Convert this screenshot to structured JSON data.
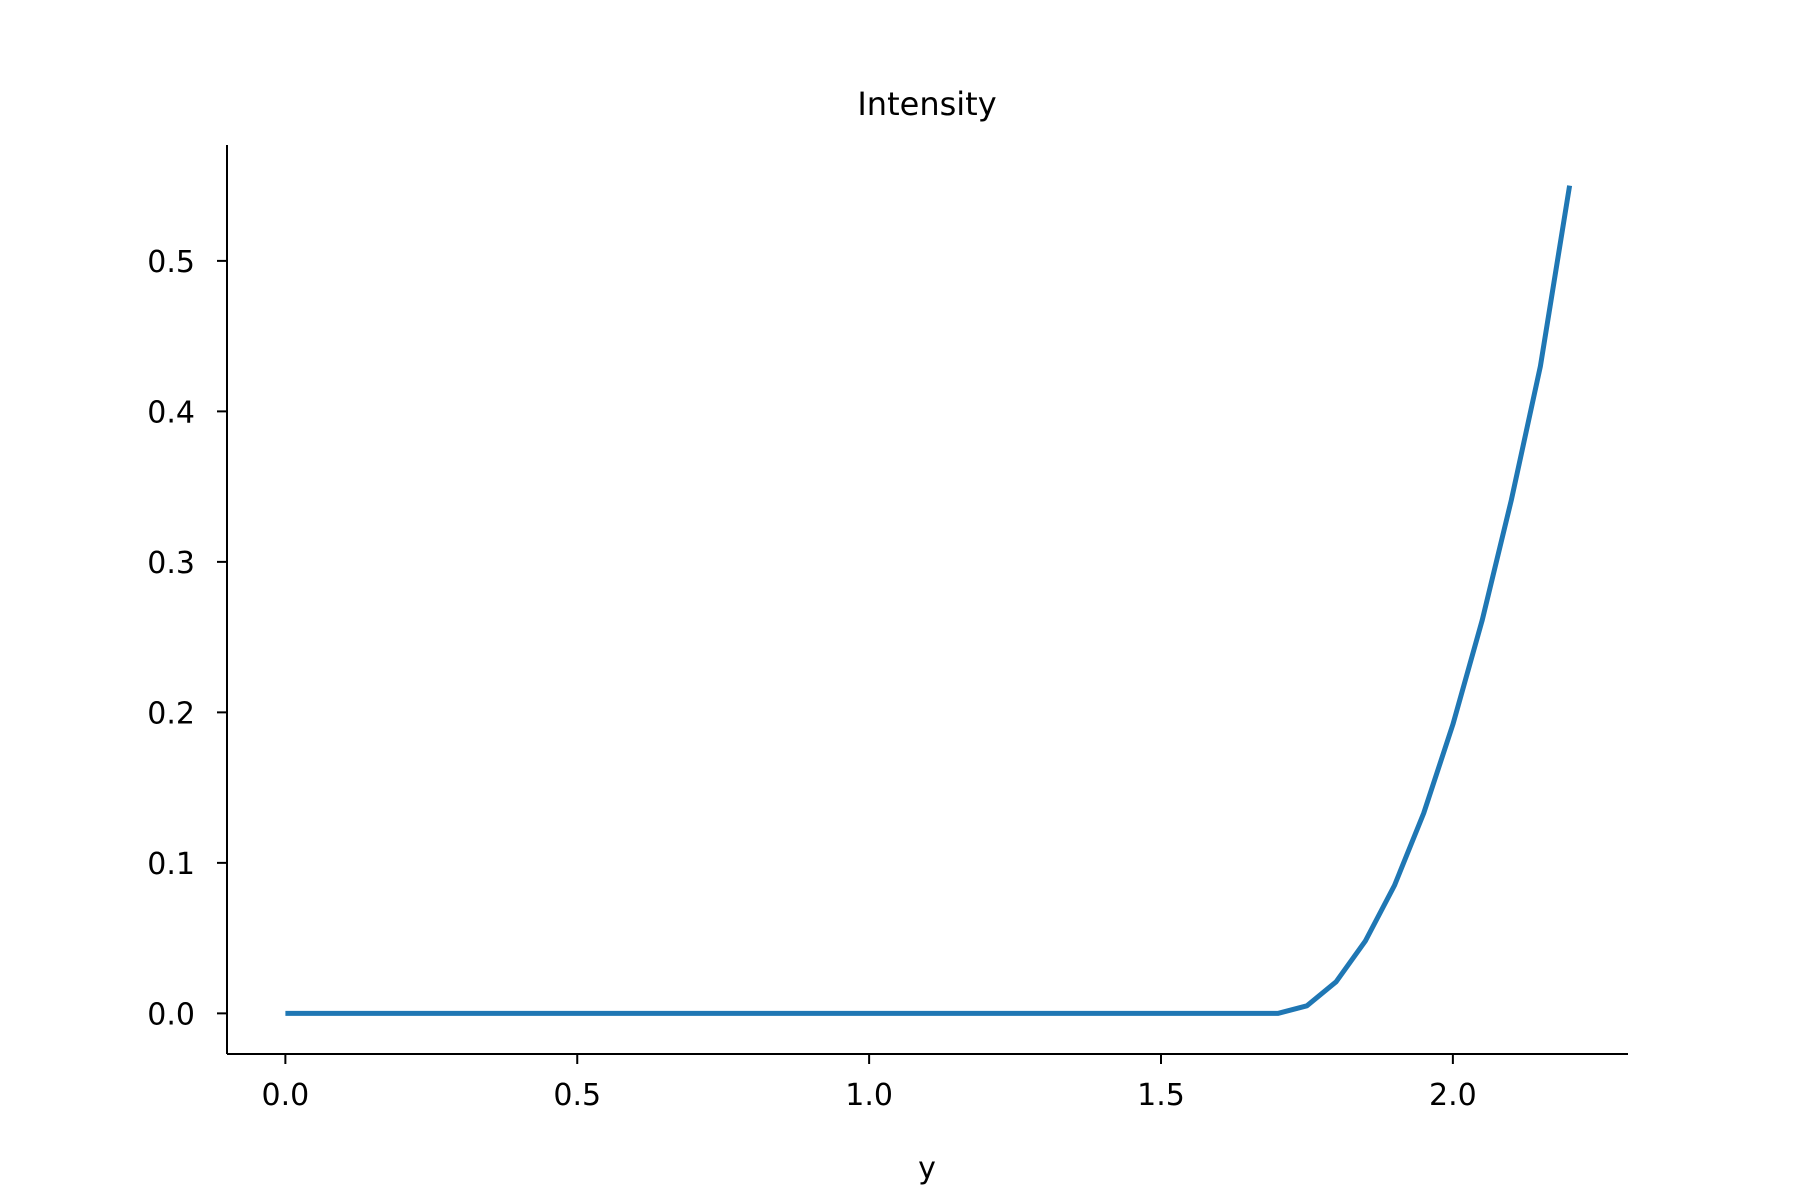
{
  "chart_data": {
    "type": "line",
    "title": "Intensity",
    "xlabel": "y",
    "ylabel": "",
    "xlim": [
      -0.1,
      2.3
    ],
    "ylim": [
      -0.027,
      0.577
    ],
    "xticks": [
      0.0,
      0.5,
      1.0,
      1.5,
      2.0
    ],
    "xtick_labels": [
      "0.0",
      "0.5",
      "1.0",
      "1.5",
      "2.0"
    ],
    "yticks": [
      0.0,
      0.1,
      0.2,
      0.3,
      0.4,
      0.5
    ],
    "ytick_labels": [
      "0.0",
      "0.1",
      "0.2",
      "0.3",
      "0.4",
      "0.5"
    ],
    "grid": false,
    "legend": "none",
    "colors": {
      "line": "#1f77b4",
      "axis": "#000000",
      "background": "#ffffff"
    },
    "series": [
      {
        "x": [
          0.0,
          0.25,
          0.5,
          0.75,
          1.0,
          1.25,
          1.5,
          1.7,
          1.75,
          1.8,
          1.85,
          1.9,
          1.95,
          2.0,
          2.05,
          2.1,
          2.15,
          2.2
        ],
        "y": [
          0.0,
          0.0,
          0.0,
          0.0,
          0.0,
          0.0,
          0.0,
          0.0,
          0.005,
          0.021,
          0.048,
          0.085,
          0.133,
          0.192,
          0.261,
          0.341,
          0.43,
          0.55
        ]
      }
    ]
  }
}
